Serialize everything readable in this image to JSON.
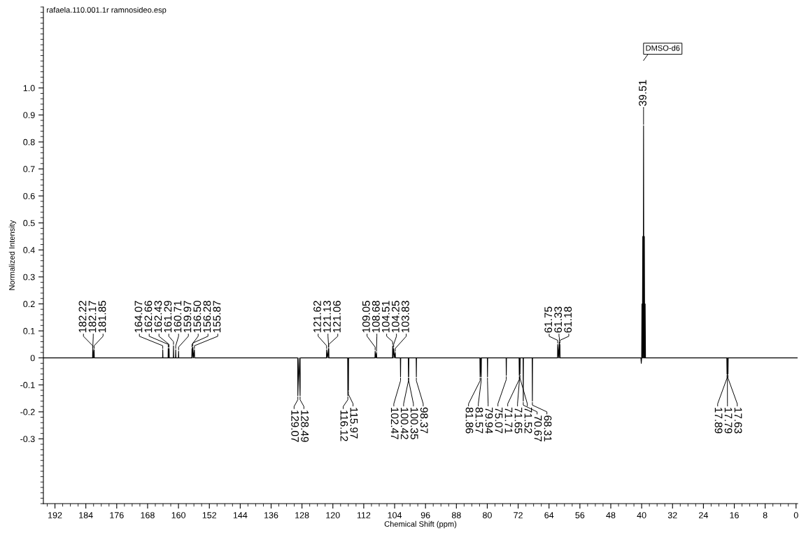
{
  "chart_data": {
    "type": "line",
    "title": "rafaela.110.001.1r ramnosideo.esp",
    "xlabel": "Chemical Shift (ppm)",
    "ylabel": "Normalized Intensity",
    "x": [
      195,
      182.26,
      182.22,
      182.195,
      182.17,
      182.0,
      181.85,
      181.8,
      164.12,
      164.07,
      164.02,
      162.7,
      162.66,
      162.55,
      162.43,
      162.38,
      161.34,
      161.29,
      161.24,
      160.76,
      160.71,
      160.66,
      160.02,
      159.97,
      159.92,
      156.55,
      156.5,
      156.39,
      156.28,
      156.1,
      155.87,
      155.82,
      129.12,
      129.07,
      128.78,
      128.49,
      128.44,
      121.67,
      121.62,
      121.4,
      121.13,
      121.095,
      121.06,
      121.01,
      116.17,
      116.12,
      116.045,
      115.97,
      115.92,
      109.1,
      109.05,
      108.87,
      108.68,
      108.63,
      104.56,
      104.51,
      104.38,
      104.25,
      104.04,
      103.83,
      103.78,
      102.52,
      102.47,
      102.42,
      100.47,
      100.42,
      100.385,
      100.35,
      100.3,
      98.42,
      98.37,
      98.32,
      81.91,
      81.86,
      81.7,
      81.57,
      81.52,
      79.99,
      79.94,
      79.89,
      75.12,
      75.07,
      75.02,
      71.76,
      71.71,
      71.68,
      71.65,
      71.6,
      71.52,
      71.47,
      70.72,
      70.67,
      70.62,
      68.36,
      68.31,
      68.26,
      61.8,
      61.75,
      61.54,
      61.33,
      61.255,
      61.18,
      61.13,
      40.2,
      40.1,
      40.0,
      39.93,
      39.83,
      39.72,
      39.62,
      39.51,
      39.41,
      39.3,
      39.2,
      39.09,
      39.0,
      17.94,
      17.89,
      17.84,
      17.79,
      17.71,
      17.63,
      17.58,
      -0.4
    ],
    "series": [
      {
        "color": "#000000",
        "values": [
          0,
          0,
          0.03,
          0,
          0.034,
          0,
          0.03,
          0,
          0,
          0.03,
          0,
          0,
          0.035,
          0,
          0.035,
          0,
          0,
          0.045,
          0,
          0,
          0.03,
          0,
          0,
          0.025,
          0,
          0,
          0.035,
          0,
          0.04,
          0,
          0.03,
          0,
          0,
          -0.14,
          0,
          -0.14,
          0,
          0,
          0.03,
          0,
          0.035,
          0,
          0.035,
          0,
          0,
          -0.14,
          0,
          -0.12,
          0,
          0,
          0.025,
          0,
          0.02,
          0,
          0,
          0.045,
          0,
          0.035,
          0,
          0.02,
          0,
          0,
          -0.07,
          0,
          0,
          -0.07,
          0,
          -0.07,
          0,
          0,
          -0.07,
          0,
          0,
          -0.07,
          0,
          -0.07,
          0,
          0,
          -0.07,
          0,
          0,
          -0.065,
          0,
          0,
          -0.065,
          0,
          -0.065,
          0,
          -0.06,
          0,
          0,
          -0.16,
          0,
          0,
          -0.16,
          0,
          0,
          0.05,
          0,
          0.06,
          0,
          0.05,
          0,
          0,
          -0.02,
          0,
          0.2,
          0,
          0.45,
          0,
          0.86,
          0,
          0.45,
          0,
          0.2,
          0,
          0,
          -0.06,
          0,
          -0.065,
          0,
          -0.06,
          0,
          0
        ]
      }
    ],
    "xlim": [
      195,
      -0.4
    ],
    "ylim": [
      -0.54,
      1.3
    ],
    "xticks": [
      192,
      184,
      176,
      168,
      160,
      152,
      144,
      136,
      128,
      120,
      112,
      104,
      96,
      88,
      80,
      72,
      64,
      56,
      48,
      40,
      32,
      24,
      16,
      8,
      0
    ],
    "yticks": [
      -0.3,
      -0.2,
      -0.1,
      0,
      0.1,
      0.2,
      0.3,
      0.4,
      0.5,
      0.6,
      0.7,
      0.8,
      0.9,
      {
        "value": 1.0,
        "label": "1.0"
      }
    ],
    "annotations": [
      {
        "text": "182.22",
        "x": 182.22,
        "y": 0.03
      },
      {
        "text": "182.17",
        "x": 182.17,
        "y": 0.034
      },
      {
        "text": "181.85",
        "x": 181.85,
        "y": 0.03
      },
      {
        "text": "164.07",
        "x": 164.07,
        "y": 0.03
      },
      {
        "text": "162.66",
        "x": 162.66,
        "y": 0.035
      },
      {
        "text": "162.43",
        "x": 162.43,
        "y": 0.035
      },
      {
        "text": "161.29",
        "x": 161.29,
        "y": 0.045
      },
      {
        "text": "160.71",
        "x": 160.71,
        "y": 0.03
      },
      {
        "text": "159.97",
        "x": 159.97,
        "y": 0.025
      },
      {
        "text": "156.50",
        "x": 156.5,
        "y": 0.035
      },
      {
        "text": "156.28",
        "x": 156.28,
        "y": 0.04
      },
      {
        "text": "155.87",
        "x": 155.87,
        "y": 0.03
      },
      {
        "text": "129.07",
        "x": 129.07,
        "y": -0.14
      },
      {
        "text": "128.49",
        "x": 128.49,
        "y": -0.14
      },
      {
        "text": "121.62",
        "x": 121.62,
        "y": 0.03
      },
      {
        "text": "121.13",
        "x": 121.13,
        "y": 0.035
      },
      {
        "text": "121.06",
        "x": 121.06,
        "y": 0.035
      },
      {
        "text": "116.12",
        "x": 116.12,
        "y": -0.14
      },
      {
        "text": "115.97",
        "x": 115.97,
        "y": -0.12
      },
      {
        "text": "109.05",
        "x": 109.05,
        "y": 0.025
      },
      {
        "text": "108.68",
        "x": 108.68,
        "y": 0.02
      },
      {
        "text": "104.51",
        "x": 104.51,
        "y": 0.045
      },
      {
        "text": "104.25",
        "x": 104.25,
        "y": 0.035
      },
      {
        "text": "103.83",
        "x": 103.83,
        "y": 0.02
      },
      {
        "text": "102.47",
        "x": 102.47,
        "y": -0.07
      },
      {
        "text": "100.42",
        "x": 100.42,
        "y": -0.07
      },
      {
        "text": "100.35",
        "x": 100.35,
        "y": -0.07
      },
      {
        "text": "98.37",
        "x": 98.37,
        "y": -0.07
      },
      {
        "text": "81.86",
        "x": 81.86,
        "y": -0.07
      },
      {
        "text": "81.57",
        "x": 81.57,
        "y": -0.07
      },
      {
        "text": "79.94",
        "x": 79.94,
        "y": -0.07
      },
      {
        "text": "75.07",
        "x": 75.07,
        "y": -0.065
      },
      {
        "text": "71.71",
        "x": 71.71,
        "y": -0.065
      },
      {
        "text": "71.65",
        "x": 71.65,
        "y": -0.065
      },
      {
        "text": "71.52",
        "x": 71.52,
        "y": -0.06
      },
      {
        "text": "70.67",
        "x": 70.67,
        "y": -0.16
      },
      {
        "text": "68.31",
        "x": 68.31,
        "y": -0.16
      },
      {
        "text": "61.75",
        "x": 61.75,
        "y": 0.05
      },
      {
        "text": "61.33",
        "x": 61.33,
        "y": 0.06
      },
      {
        "text": "61.18",
        "x": 61.18,
        "y": 0.05
      },
      {
        "text": "39.51",
        "x": 39.51,
        "y": 0.86
      },
      "DMSO-d6",
      {
        "text": "17.89",
        "x": 17.89,
        "y": -0.06
      },
      {
        "text": "17.79",
        "x": 17.79,
        "y": -0.065
      },
      {
        "text": "17.63",
        "x": 17.63,
        "y": -0.06
      }
    ]
  }
}
